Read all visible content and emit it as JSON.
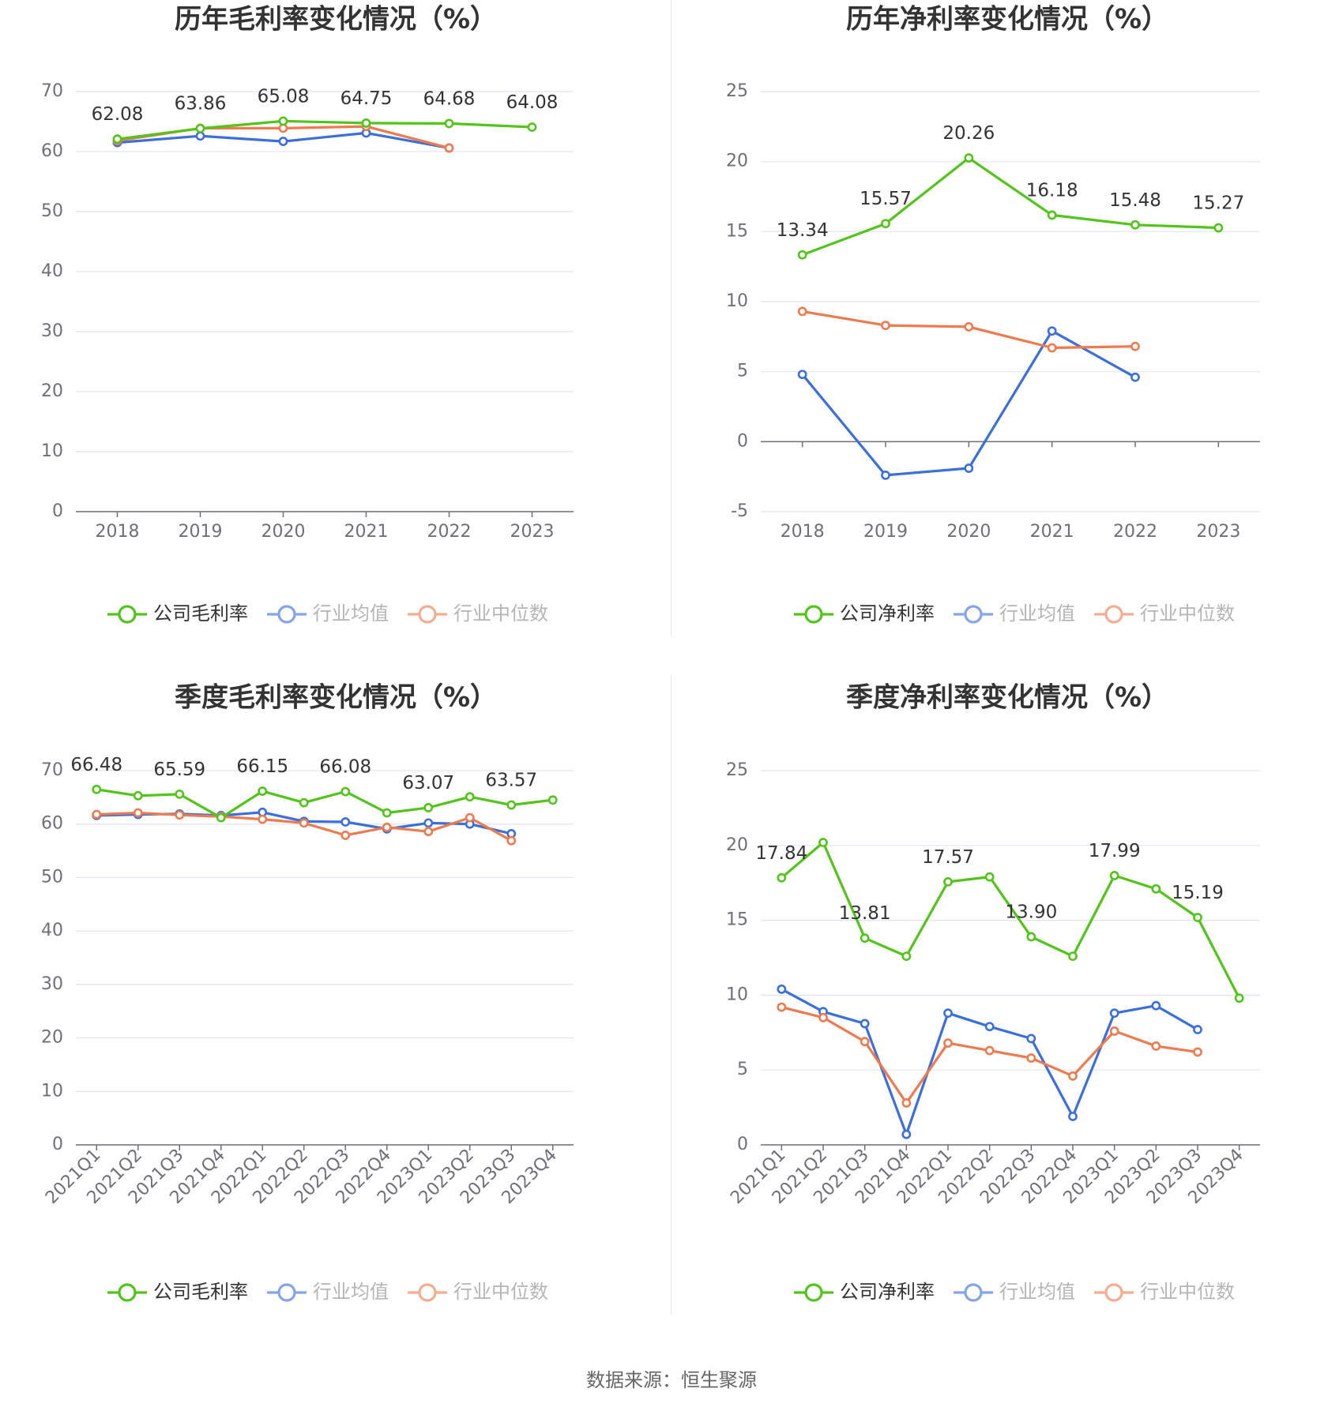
{
  "source_label": "数据来源：恒生聚源",
  "colors": {
    "company": "#52c41a",
    "avg": "#3a6fdc",
    "median": "#ee7b4e"
  },
  "chart_data": [
    {
      "type": "line",
      "title": "历年毛利率变化情况（%）",
      "categories": [
        "2018",
        "2019",
        "2020",
        "2021",
        "2022",
        "2023"
      ],
      "ylim": [
        0,
        70
      ],
      "yticks": [
        0,
        10,
        20,
        30,
        40,
        50,
        60,
        70
      ],
      "grid": true,
      "legend": "bottom",
      "legend_entries": [
        "公司毛利率",
        "行业均值",
        "行业中位数"
      ],
      "series": [
        {
          "name": "公司毛利率",
          "values": [
            62.08,
            63.86,
            65.08,
            64.75,
            64.68,
            64.08
          ],
          "labels": [
            "62.08",
            "63.86",
            "65.08",
            "64.75",
            "64.68",
            "64.08"
          ]
        },
        {
          "name": "行业均值",
          "values": [
            61.5,
            62.6,
            61.7,
            63.1,
            60.6,
            null
          ]
        },
        {
          "name": "行业中位数",
          "values": [
            61.8,
            63.9,
            63.9,
            64.2,
            60.6,
            null
          ]
        }
      ]
    },
    {
      "type": "line",
      "title": "历年净利率变化情况（%）",
      "categories": [
        "2018",
        "2019",
        "2020",
        "2021",
        "2022",
        "2023"
      ],
      "ylim": [
        -5,
        25
      ],
      "yticks": [
        -5,
        0,
        5,
        10,
        15,
        20,
        25
      ],
      "grid": true,
      "legend": "bottom",
      "legend_entries": [
        "公司净利率",
        "行业均值",
        "行业中位数"
      ],
      "series": [
        {
          "name": "公司净利率",
          "values": [
            13.34,
            15.57,
            20.26,
            16.18,
            15.48,
            15.27
          ],
          "labels": [
            "13.34",
            "15.57",
            "20.26",
            "16.18",
            "15.48",
            "15.27"
          ]
        },
        {
          "name": "行业均值",
          "values": [
            4.8,
            -2.4,
            -1.9,
            7.9,
            4.6,
            null
          ]
        },
        {
          "name": "行业中位数",
          "values": [
            9.3,
            8.3,
            8.2,
            6.7,
            6.8,
            null
          ]
        }
      ]
    },
    {
      "type": "line",
      "title": "季度毛利率变化情况（%）",
      "categories": [
        "2021Q1",
        "2021Q2",
        "2021Q3",
        "2021Q4",
        "2022Q1",
        "2022Q2",
        "2022Q3",
        "2022Q4",
        "2023Q1",
        "2023Q2",
        "2023Q3",
        "2023Q4"
      ],
      "ylim": [
        0,
        70
      ],
      "yticks": [
        0,
        10,
        20,
        30,
        40,
        50,
        60,
        70
      ],
      "grid": true,
      "legend": "bottom",
      "legend_entries": [
        "公司毛利率",
        "行业均值",
        "行业中位数"
      ],
      "series": [
        {
          "name": "公司毛利率",
          "values": [
            66.48,
            65.3,
            65.59,
            61.2,
            66.15,
            64.0,
            66.08,
            62.1,
            63.07,
            65.1,
            63.57,
            64.5
          ],
          "labels": [
            "66.48",
            "",
            "65.59",
            "",
            "66.15",
            "",
            "66.08",
            "",
            "63.07",
            "",
            "63.57",
            ""
          ]
        },
        {
          "name": "行业均值",
          "values": [
            61.6,
            61.8,
            61.9,
            61.6,
            62.2,
            60.5,
            60.4,
            59.1,
            60.2,
            60.0,
            58.2,
            null
          ]
        },
        {
          "name": "行业中位数",
          "values": [
            61.8,
            62.1,
            61.7,
            61.4,
            60.9,
            60.2,
            57.9,
            59.4,
            58.6,
            61.2,
            56.9,
            null
          ]
        }
      ]
    },
    {
      "type": "line",
      "title": "季度净利率变化情况（%）",
      "categories": [
        "2021Q1",
        "2021Q2",
        "2021Q3",
        "2021Q4",
        "2022Q1",
        "2022Q2",
        "2022Q3",
        "2022Q4",
        "2023Q1",
        "2023Q2",
        "2023Q3",
        "2023Q4"
      ],
      "ylim": [
        0,
        25
      ],
      "yticks": [
        0,
        5,
        10,
        15,
        20,
        25
      ],
      "grid": true,
      "legend": "bottom",
      "legend_entries": [
        "公司净利率",
        "行业均值",
        "行业中位数"
      ],
      "series": [
        {
          "name": "公司净利率",
          "values": [
            17.84,
            20.2,
            13.81,
            12.6,
            17.57,
            17.9,
            13.9,
            12.6,
            17.99,
            17.1,
            15.19,
            9.8
          ],
          "labels": [
            "17.84",
            "",
            "13.81",
            "",
            "17.57",
            "",
            "13.90",
            "",
            "17.99",
            "",
            "15.19",
            ""
          ]
        },
        {
          "name": "行业均值",
          "values": [
            10.4,
            8.9,
            8.1,
            0.7,
            8.8,
            7.9,
            7.1,
            1.9,
            8.8,
            9.3,
            7.7,
            null
          ]
        },
        {
          "name": "行业中位数",
          "values": [
            9.2,
            8.5,
            6.9,
            2.8,
            6.8,
            6.3,
            5.8,
            4.6,
            7.6,
            6.6,
            6.2,
            null
          ]
        }
      ]
    }
  ]
}
